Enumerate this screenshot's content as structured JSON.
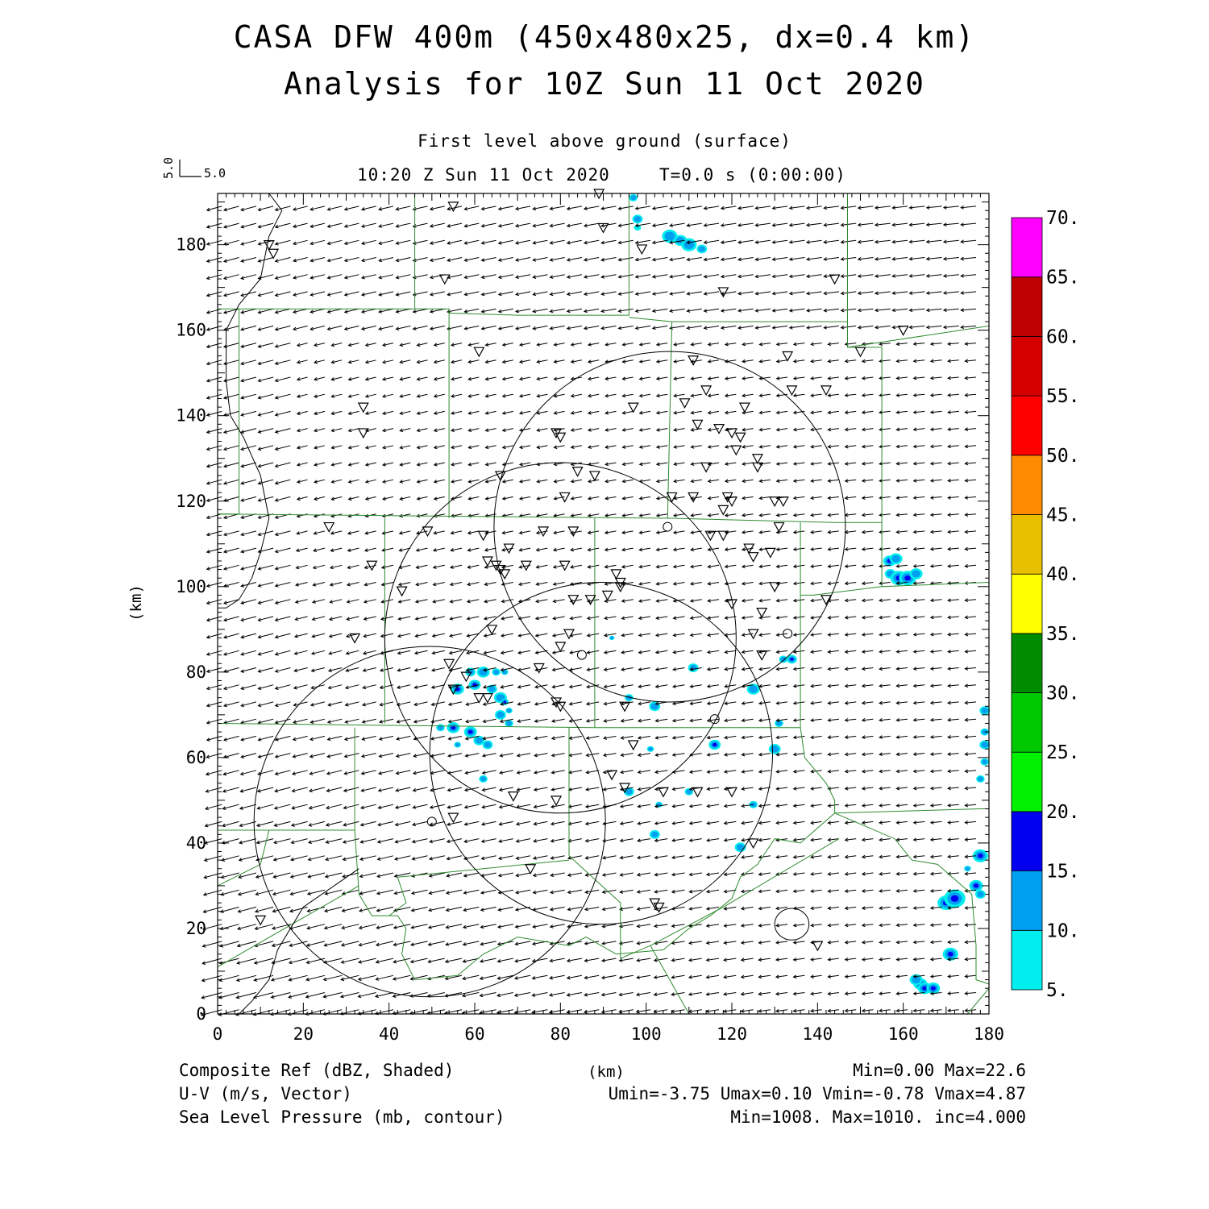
{
  "header": {
    "title_line1": "CASA DFW 400m (450x480x25, dx=0.4 km)",
    "title_line2": "Analysis for 10Z Sun 11 Oct 2020",
    "level": "First level above ground (surface)",
    "valid_time": "10:20 Z Sun 11 Oct 2020",
    "time_offset": "T=0.0 s (0:00:00)",
    "vector_scale_u": "5.0",
    "vector_scale_v": "5.0"
  },
  "axes": {
    "x_label": "(km)",
    "y_label": "(km)",
    "x_ticks": [
      "0",
      "20",
      "40",
      "60",
      "80",
      "100",
      "120",
      "140",
      "160",
      "180"
    ],
    "y_ticks": [
      "0",
      "20",
      "40",
      "60",
      "80",
      "100",
      "120",
      "140",
      "160",
      "180"
    ],
    "x_range": [
      0,
      180
    ],
    "y_range": [
      0,
      192
    ]
  },
  "colorbar": {
    "labels": [
      "5.",
      "10.",
      "15.",
      "20.",
      "25.",
      "30.",
      "35.",
      "40.",
      "45.",
      "50.",
      "55.",
      "60.",
      "65.",
      "70."
    ],
    "colors": [
      "#00eeee",
      "#00a0f0",
      "#0000f0",
      "#00f000",
      "#00c800",
      "#008c00",
      "#ffff00",
      "#e8c000",
      "#ff8c00",
      "#ff0000",
      "#d40000",
      "#be0000",
      "#ff00ff"
    ]
  },
  "footer": {
    "field1_name": "Composite Ref (dBZ, Shaded)",
    "field1_stats": "Min=0.00 Max=22.6",
    "field2_name": "U-V (m/s, Vector)",
    "field2_stats": "Umin=-3.75 Umax=0.10 Vmin=-0.78 Vmax=4.87",
    "field3_name": "Sea Level Pressure (mb, contour)",
    "field3_stats": "Min=1008. Max=1010. inc=4.000",
    "center_label": "(km)"
  },
  "map_data": {
    "radar_rings": [
      {
        "center": [
          49.5,
          45
        ],
        "radius": 41
      },
      {
        "center": [
          80,
          88
        ],
        "radius": 41
      },
      {
        "center": [
          105.5,
          114
        ],
        "radius": 41
      },
      {
        "center": [
          89.5,
          61
        ],
        "radius": 40
      }
    ],
    "radar_sites": [
      [
        105,
        114
      ],
      [
        116,
        69
      ],
      [
        50,
        45
      ],
      [
        85,
        84
      ],
      [
        133,
        89
      ]
    ],
    "stations": [
      [
        55,
        189
      ],
      [
        89,
        192
      ],
      [
        90,
        184
      ],
      [
        12,
        180
      ],
      [
        13,
        178
      ],
      [
        53,
        172
      ],
      [
        99,
        179
      ],
      [
        118,
        169
      ],
      [
        144,
        172
      ],
      [
        160,
        160
      ],
      [
        150,
        155
      ],
      [
        61,
        155
      ],
      [
        111,
        153
      ],
      [
        133,
        154
      ],
      [
        34,
        142
      ],
      [
        34,
        136
      ],
      [
        97,
        142
      ],
      [
        109,
        143
      ],
      [
        114,
        146
      ],
      [
        123,
        142
      ],
      [
        134,
        146
      ],
      [
        142,
        146
      ],
      [
        79,
        136
      ],
      [
        80,
        135
      ],
      [
        112,
        138
      ],
      [
        117,
        137
      ],
      [
        120,
        136
      ],
      [
        122,
        135
      ],
      [
        121,
        132
      ],
      [
        126,
        130
      ],
      [
        126,
        128
      ],
      [
        114,
        128
      ],
      [
        84,
        127
      ],
      [
        88,
        126
      ],
      [
        66,
        126
      ],
      [
        81,
        121
      ],
      [
        106,
        121
      ],
      [
        111,
        121
      ],
      [
        119,
        121
      ],
      [
        120,
        120
      ],
      [
        118,
        118
      ],
      [
        130,
        120
      ],
      [
        132,
        120
      ],
      [
        131,
        114
      ],
      [
        26,
        114
      ],
      [
        49,
        113
      ],
      [
        62,
        112
      ],
      [
        68,
        109
      ],
      [
        76,
        113
      ],
      [
        83,
        113
      ],
      [
        115,
        112
      ],
      [
        118,
        112
      ],
      [
        124,
        109
      ],
      [
        125,
        107
      ],
      [
        129,
        108
      ],
      [
        36,
        105
      ],
      [
        63,
        106
      ],
      [
        65,
        105
      ],
      [
        66,
        104
      ],
      [
        67,
        103
      ],
      [
        72,
        105
      ],
      [
        81,
        105
      ],
      [
        93,
        103
      ],
      [
        94,
        101
      ],
      [
        43,
        99
      ],
      [
        83,
        97
      ],
      [
        87,
        97
      ],
      [
        91,
        98
      ],
      [
        94,
        100
      ],
      [
        120,
        96
      ],
      [
        130,
        100
      ],
      [
        142,
        97
      ],
      [
        127,
        94
      ],
      [
        64,
        90
      ],
      [
        82,
        89
      ],
      [
        125,
        89
      ],
      [
        32,
        88
      ],
      [
        80,
        86
      ],
      [
        75,
        81
      ],
      [
        58,
        79
      ],
      [
        54,
        82
      ],
      [
        61,
        74
      ],
      [
        63,
        74
      ],
      [
        55,
        76
      ],
      [
        79,
        73
      ],
      [
        80,
        72
      ],
      [
        95,
        72
      ],
      [
        127,
        84
      ],
      [
        97,
        63
      ],
      [
        92,
        56
      ],
      [
        95,
        53
      ],
      [
        112,
        52
      ],
      [
        120,
        52
      ],
      [
        55,
        46
      ],
      [
        69,
        51
      ],
      [
        79,
        50
      ],
      [
        104,
        52
      ],
      [
        125,
        40
      ],
      [
        73,
        34
      ],
      [
        102,
        26
      ],
      [
        103,
        25
      ],
      [
        10,
        22
      ],
      [
        140,
        16
      ]
    ],
    "echoes": [
      [
        97,
        191,
        1,
        1.0
      ],
      [
        98,
        186,
        1,
        1.2
      ],
      [
        98,
        184,
        0,
        0.8
      ],
      [
        105.5,
        182,
        1,
        1.8
      ],
      [
        108,
        181,
        1,
        1.5
      ],
      [
        110,
        180,
        1,
        1.8
      ],
      [
        113,
        179,
        1,
        1.2
      ],
      [
        156.8,
        106,
        2,
        1.5
      ],
      [
        158.3,
        106.5,
        1,
        1.5
      ],
      [
        157,
        103,
        1,
        1.3
      ],
      [
        159,
        102,
        2,
        2.0
      ],
      [
        161,
        102,
        2,
        2.0
      ],
      [
        163,
        103,
        1,
        1.5
      ],
      [
        134,
        83,
        3,
        1.2
      ],
      [
        132,
        83,
        1,
        1.0
      ],
      [
        59,
        80,
        1,
        1.2
      ],
      [
        62,
        80,
        1,
        1.5
      ],
      [
        65,
        80,
        1,
        1.0
      ],
      [
        67,
        80,
        1,
        0.8
      ],
      [
        56,
        76,
        2,
        1.5
      ],
      [
        60,
        77,
        2,
        1.4
      ],
      [
        64,
        76,
        1,
        1.2
      ],
      [
        66,
        74,
        1,
        1.5
      ],
      [
        67,
        73,
        2,
        0.9
      ],
      [
        66,
        70,
        1,
        1.3
      ],
      [
        68,
        71,
        1,
        0.8
      ],
      [
        68,
        68,
        1,
        1.0
      ],
      [
        55,
        67,
        2,
        1.5
      ],
      [
        52,
        67,
        1,
        1.0
      ],
      [
        59,
        66,
        2,
        1.5
      ],
      [
        61,
        64,
        1,
        1.3
      ],
      [
        63,
        63,
        1,
        1.2
      ],
      [
        56,
        63,
        1,
        0.8
      ],
      [
        62,
        55,
        1,
        1.0
      ],
      [
        92,
        88,
        1,
        0.6
      ],
      [
        111,
        81,
        1,
        1.2
      ],
      [
        125,
        76,
        1,
        1.5
      ],
      [
        96,
        74,
        1,
        1.0
      ],
      [
        102,
        72,
        1,
        1.3
      ],
      [
        131,
        68,
        1,
        1.0
      ],
      [
        116,
        63,
        2,
        1.4
      ],
      [
        130,
        62,
        1,
        1.4
      ],
      [
        101,
        62,
        1,
        0.8
      ],
      [
        96,
        52,
        1,
        1.2
      ],
      [
        110,
        52,
        1,
        1.0
      ],
      [
        103,
        49,
        1,
        0.8
      ],
      [
        125,
        49,
        1,
        1.0
      ],
      [
        102,
        42,
        1,
        1.2
      ],
      [
        122,
        39,
        1,
        1.3
      ],
      [
        179,
        71,
        1,
        1.2
      ],
      [
        179,
        66,
        1,
        1.0
      ],
      [
        179,
        63,
        1,
        1.2
      ],
      [
        179,
        59,
        1,
        1.0
      ],
      [
        178,
        55,
        1,
        1.0
      ],
      [
        178,
        37,
        2,
        1.8
      ],
      [
        175,
        34,
        1,
        0.8
      ],
      [
        177,
        30,
        2,
        1.6
      ],
      [
        178,
        28,
        1,
        1.2
      ],
      [
        170,
        26,
        2,
        2.0
      ],
      [
        172,
        27,
        2,
        2.5
      ],
      [
        171,
        14,
        2,
        1.8
      ],
      [
        164,
        7,
        2,
        1.6
      ],
      [
        165,
        6,
        3,
        1.6
      ],
      [
        167,
        6,
        2,
        1.6
      ],
      [
        163,
        8,
        1,
        1.5
      ]
    ],
    "county_lines": [
      [
        [
          0,
          165
        ],
        [
          46,
          165
        ],
        [
          46,
          192
        ]
      ],
      [
        [
          46,
          165
        ],
        [
          54,
          165
        ],
        [
          54,
          164
        ],
        [
          70,
          163.5
        ],
        [
          96,
          163.5
        ],
        [
          96,
          192
        ]
      ],
      [
        [
          96,
          163
        ],
        [
          106,
          162
        ],
        [
          147,
          162
        ],
        [
          147,
          192
        ]
      ],
      [
        [
          147,
          162
        ],
        [
          147,
          156
        ],
        [
          155,
          156
        ],
        [
          155,
          109
        ]
      ],
      [
        [
          147,
          156
        ],
        [
          180,
          161
        ]
      ],
      [
        [
          5,
          165
        ],
        [
          5,
          117
        ],
        [
          0,
          117
        ]
      ],
      [
        [
          54,
          164
        ],
        [
          54,
          116
        ]
      ],
      [
        [
          0,
          117
        ],
        [
          106,
          116
        ],
        [
          144,
          115
        ],
        [
          155,
          115
        ]
      ],
      [
        [
          106,
          162
        ],
        [
          105,
          116
        ]
      ],
      [
        [
          39,
          116
        ],
        [
          39,
          68
        ]
      ],
      [
        [
          88,
          116
        ],
        [
          88,
          67
        ]
      ],
      [
        [
          155,
          109
        ],
        [
          155,
          100
        ],
        [
          180,
          101
        ],
        [
          180,
          0
        ]
      ],
      [
        [
          155,
          100
        ],
        [
          139,
          98
        ],
        [
          136,
          98
        ]
      ],
      [
        [
          136,
          115
        ],
        [
          136,
          67
        ]
      ],
      [
        [
          0,
          68
        ],
        [
          88,
          67
        ],
        [
          136,
          67
        ]
      ],
      [
        [
          82,
          67
        ],
        [
          82,
          37
        ]
      ],
      [
        [
          32,
          67
        ],
        [
          32,
          43
        ]
      ],
      [
        [
          0,
          43
        ],
        [
          32,
          43
        ]
      ],
      [
        [
          32,
          43
        ],
        [
          33,
          28
        ],
        [
          36,
          23
        ],
        [
          40,
          23
        ],
        [
          44,
          26
        ],
        [
          42,
          32
        ],
        [
          82,
          36
        ]
      ],
      [
        [
          0,
          30
        ],
        [
          10,
          35
        ],
        [
          12,
          43
        ],
        [
          0,
          43
        ]
      ],
      [
        [
          0,
          11
        ],
        [
          33,
          30
        ]
      ],
      [
        [
          46,
          8
        ],
        [
          43,
          14
        ],
        [
          44,
          20
        ],
        [
          42,
          23
        ],
        [
          40,
          23
        ]
      ],
      [
        [
          46,
          8
        ],
        [
          56,
          9
        ],
        [
          62,
          14
        ],
        [
          70,
          18
        ],
        [
          82,
          16
        ],
        [
          86,
          18
        ],
        [
          93,
          14
        ],
        [
          104,
          15
        ],
        [
          110,
          20
        ],
        [
          115,
          23
        ],
        [
          120,
          27
        ],
        [
          122,
          32
        ],
        [
          126,
          35
        ],
        [
          128,
          38
        ],
        [
          130,
          41
        ],
        [
          136,
          40
        ]
      ],
      [
        [
          82,
          37
        ],
        [
          94,
          26
        ],
        [
          94,
          13
        ],
        [
          101,
          16
        ],
        [
          110,
          0
        ]
      ],
      [
        [
          136,
          67
        ],
        [
          137,
          60
        ],
        [
          142,
          54
        ],
        [
          144,
          50
        ],
        [
          144,
          47
        ]
      ],
      [
        [
          144,
          47
        ],
        [
          178,
          48
        ],
        [
          180,
          48
        ]
      ],
      [
        [
          136,
          40
        ],
        [
          144,
          47
        ]
      ],
      [
        [
          101,
          16
        ],
        [
          118,
          25
        ],
        [
          145,
          41
        ]
      ],
      [
        [
          144,
          47
        ],
        [
          158,
          41
        ],
        [
          162,
          36
        ],
        [
          168,
          35
        ],
        [
          176,
          28
        ],
        [
          177,
          16
        ],
        [
          177,
          8
        ],
        [
          180,
          7
        ]
      ],
      [
        [
          175,
          0
        ],
        [
          180,
          6
        ]
      ]
    ],
    "slp_line": [
      [
        12,
        192
      ],
      [
        15,
        188
      ],
      [
        12,
        182
      ],
      [
        10,
        172
      ],
      [
        5,
        166
      ],
      [
        2,
        160
      ],
      [
        2,
        148
      ],
      [
        3,
        140
      ],
      [
        6,
        135
      ],
      [
        10,
        126
      ],
      [
        12,
        116
      ],
      [
        10,
        108
      ],
      [
        8,
        102
      ],
      [
        5,
        97
      ],
      [
        2,
        95
      ],
      [
        0,
        95
      ]
    ],
    "slp_low_near_0": [
      [
        5,
        0
      ],
      [
        8,
        3
      ],
      [
        12,
        8
      ],
      [
        14,
        15
      ],
      [
        20,
        25
      ],
      [
        33,
        34
      ]
    ],
    "slp_small_loop": {
      "center": [
        134,
        21
      ],
      "rx": 4,
      "ry": 3.7
    }
  }
}
